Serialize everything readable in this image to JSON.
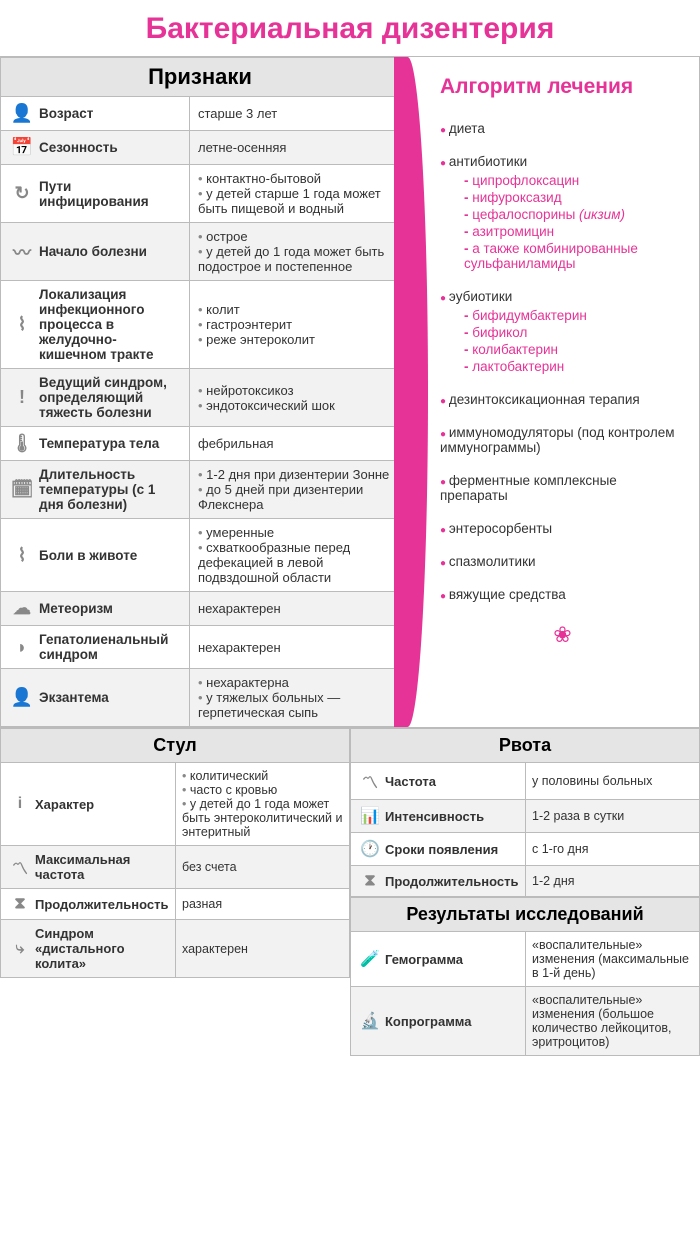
{
  "colors": {
    "accent": "#e63397",
    "header_bg": "#e5e5e5",
    "row_alt": "#f2f2f2",
    "border": "#bbbbbb",
    "icon": "#888888",
    "text": "#333333"
  },
  "title": "Бактериальная дизентерия",
  "signs": {
    "header": "Признаки",
    "rows": [
      {
        "icon": "👤",
        "label": "Возраст",
        "value": [
          "старше 3 лет"
        ]
      },
      {
        "icon": "📅",
        "label": "Сезонность",
        "value": [
          "летне-осенняя"
        ]
      },
      {
        "icon": "↻",
        "label": "Пути инфицирования",
        "value": [
          "контактно-бытовой",
          "у детей старше 1 года может быть пищевой и водный"
        ]
      },
      {
        "icon": "〰",
        "label": "Начало болезни",
        "value": [
          "острое",
          "у детей до 1 года может быть подострое и постепенное"
        ]
      },
      {
        "icon": "⌇",
        "label": "Локализация инфекционного процесса в желудочно-кишечном тракте",
        "value": [
          "колит",
          "гастроэнтерит",
          "реже энтероколит"
        ]
      },
      {
        "icon": "!",
        "label": "Ведущий синдром, определяющий тяжесть болезни",
        "value": [
          "нейротоксикоз",
          "эндотоксический шок"
        ]
      },
      {
        "icon": "🌡",
        "label": "Температура тела",
        "value": [
          "фебрильная"
        ]
      },
      {
        "icon": "🗓",
        "label": "Длительность температуры (с 1 дня болезни)",
        "value": [
          "1-2 дня при дизентерии Зонне",
          "до 5 дней при дизентерии Флекснера"
        ]
      },
      {
        "icon": "⌇",
        "label": "Боли в животе",
        "value": [
          "умеренные",
          "схваткообразные перед дефекацией в левой подвздошной области"
        ]
      },
      {
        "icon": "☁",
        "label": "Метеоризм",
        "value": [
          "нехарактерен"
        ]
      },
      {
        "icon": "◗",
        "label": "Гепатолиенальный синдром",
        "value": [
          "нехарактерен"
        ]
      },
      {
        "icon": "👤",
        "label": "Экзантема",
        "value": [
          "нехарактерна",
          "у тяжелых больных — герпетическая сыпь"
        ]
      }
    ]
  },
  "algorithm": {
    "title": "Алгоритм лечения",
    "items": [
      {
        "text": "диета"
      },
      {
        "text": "антибиотики",
        "sub": [
          {
            "text": "ципрофлоксацин"
          },
          {
            "text": "нифуроксазид"
          },
          {
            "text": "цефалоспорины",
            "note": "(икзим)"
          },
          {
            "text": "азитромицин"
          },
          {
            "text": "а также комбинированные сульфаниламиды"
          }
        ]
      },
      {
        "text": "эубиотики",
        "sub": [
          {
            "text": "бифидумбактерин"
          },
          {
            "text": "бификол"
          },
          {
            "text": "колибактерин"
          },
          {
            "text": "лактобактерин"
          }
        ]
      },
      {
        "text": "дезинтоксикационная терапия"
      },
      {
        "text": "иммуномодуляторы (под контролем иммунограммы)"
      },
      {
        "text": "ферментные комплексные препараты"
      },
      {
        "text": "энтеросорбенты"
      },
      {
        "text": "спазмолитики"
      },
      {
        "text": "вяжущие средства"
      }
    ]
  },
  "stool": {
    "header": "Стул",
    "rows": [
      {
        "icon": "i",
        "label": "Характер",
        "value": [
          "колитический",
          "часто с кровью",
          "у детей до 1 года может быть энтероколитический и энтеритный"
        ]
      },
      {
        "icon": "〽",
        "label": "Максимальная частота",
        "value": [
          "без счета"
        ]
      },
      {
        "icon": "⧗",
        "label": "Продолжительность",
        "value": [
          "разная"
        ]
      },
      {
        "icon": "⤷",
        "label": "Синдром «дистального колита»",
        "value": [
          "характерен"
        ]
      }
    ]
  },
  "vomit": {
    "header": "Рвота",
    "rows": [
      {
        "icon": "〽",
        "label": "Частота",
        "value": [
          "у половины больных"
        ]
      },
      {
        "icon": "📊",
        "label": "Интенсивность",
        "value": [
          "1-2 раза в сутки"
        ]
      },
      {
        "icon": "🕐",
        "label": "Сроки появления",
        "value": [
          "с 1-го дня"
        ]
      },
      {
        "icon": "⧗",
        "label": "Продолжительность",
        "value": [
          "1-2 дня"
        ]
      }
    ]
  },
  "results": {
    "header": "Результаты исследований",
    "rows": [
      {
        "icon": "🧪",
        "label": "Гемограмма",
        "value": [
          "«воспалительные» изменения (максимальные в 1-й день)"
        ]
      },
      {
        "icon": "🔬",
        "label": "Копрограмма",
        "value": [
          "«воспалительные» изменения (большое количество лейкоцитов, эритроцитов)"
        ]
      }
    ]
  }
}
